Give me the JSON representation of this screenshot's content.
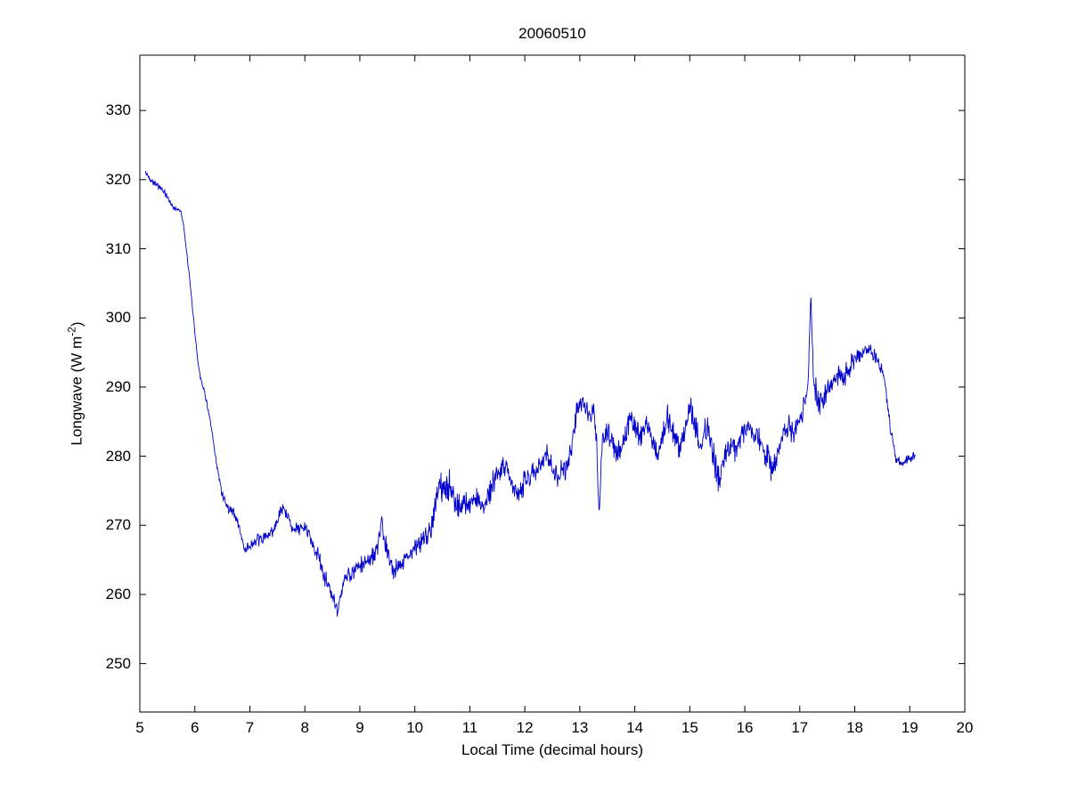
{
  "title": "20060510",
  "chart_data": {
    "type": "line",
    "title": "20060510",
    "xlabel": "Local Time (decimal hours)",
    "ylabel": "Longwave (W m-2)",
    "ylabel_parts": {
      "pre": "Longwave (W m",
      "sup": "-2",
      "post": ")"
    },
    "xlim": [
      5,
      20
    ],
    "ylim": [
      243,
      338
    ],
    "xticks": [
      5,
      6,
      7,
      8,
      9,
      10,
      11,
      12,
      13,
      14,
      15,
      16,
      17,
      18,
      19,
      20
    ],
    "yticks": [
      250,
      260,
      270,
      280,
      290,
      300,
      310,
      320,
      330
    ],
    "grid": false,
    "legend": "none",
    "line_color": "#0000cc",
    "axis_color": "#000000",
    "series": [
      {
        "name": "longwave",
        "x_start": 5.1,
        "x_end": 19.1,
        "sample_step": 0.008,
        "noise_seed": 42,
        "anchors": [
          [
            5.1,
            321,
            0.6
          ],
          [
            5.2,
            320,
            0.6
          ],
          [
            5.35,
            319,
            0.6
          ],
          [
            5.5,
            317.5,
            0.6
          ],
          [
            5.6,
            316,
            0.4
          ],
          [
            5.75,
            315.5,
            0.4
          ],
          [
            5.8,
            313,
            0.3
          ],
          [
            5.9,
            306,
            0.3
          ],
          [
            6.0,
            298,
            0.3
          ],
          [
            6.05,
            294,
            0.3
          ],
          [
            6.1,
            291.5,
            0.4
          ],
          [
            6.2,
            288.5,
            0.5
          ],
          [
            6.3,
            284,
            0.5
          ],
          [
            6.4,
            278.5,
            0.6
          ],
          [
            6.5,
            274.5,
            0.8
          ],
          [
            6.6,
            272.5,
            0.8
          ],
          [
            6.7,
            272,
            0.8
          ],
          [
            6.8,
            270,
            1.0
          ],
          [
            6.9,
            266.5,
            1.0
          ],
          [
            7.0,
            267,
            1.1
          ],
          [
            7.1,
            267.5,
            1.1
          ],
          [
            7.2,
            268,
            1.2
          ],
          [
            7.35,
            268.5,
            1.2
          ],
          [
            7.5,
            270.5,
            1.2
          ],
          [
            7.6,
            272.5,
            1.3
          ],
          [
            7.7,
            271,
            1.2
          ],
          [
            7.8,
            269.5,
            1.2
          ],
          [
            7.95,
            269.5,
            1.2
          ],
          [
            8.05,
            269.5,
            1.3
          ],
          [
            8.15,
            267,
            1.3
          ],
          [
            8.25,
            265.5,
            1.4
          ],
          [
            8.35,
            262.5,
            1.5
          ],
          [
            8.45,
            261,
            1.5
          ],
          [
            8.55,
            258.5,
            1.5
          ],
          [
            8.6,
            257,
            1.3
          ],
          [
            8.65,
            260.5,
            1.4
          ],
          [
            8.75,
            262.5,
            1.5
          ],
          [
            8.85,
            263,
            1.5
          ],
          [
            9.0,
            264,
            1.5
          ],
          [
            9.15,
            265,
            1.5
          ],
          [
            9.3,
            266,
            1.6
          ],
          [
            9.4,
            270,
            1.8
          ],
          [
            9.5,
            266,
            1.6
          ],
          [
            9.6,
            263.5,
            1.5
          ],
          [
            9.75,
            264.5,
            1.5
          ],
          [
            9.9,
            266,
            1.5
          ],
          [
            10.0,
            266.5,
            1.6
          ],
          [
            10.15,
            268,
            1.8
          ],
          [
            10.3,
            270,
            2.2
          ],
          [
            10.45,
            276,
            2.8
          ],
          [
            10.55,
            274.5,
            2.5
          ],
          [
            10.65,
            276,
            2.6
          ],
          [
            10.75,
            272.5,
            2.2
          ],
          [
            10.9,
            273.5,
            2.2
          ],
          [
            11.0,
            273,
            2.0
          ],
          [
            11.1,
            274,
            2.2
          ],
          [
            11.2,
            272.5,
            2.0
          ],
          [
            11.35,
            274.5,
            2.2
          ],
          [
            11.5,
            277.5,
            2.2
          ],
          [
            11.6,
            279,
            2.2
          ],
          [
            11.7,
            277.5,
            2.2
          ],
          [
            11.8,
            275,
            2.0
          ],
          [
            11.9,
            274.5,
            2.0
          ],
          [
            12.0,
            276.5,
            2.0
          ],
          [
            12.15,
            277.5,
            2.0
          ],
          [
            12.3,
            279.5,
            2.0
          ],
          [
            12.4,
            280,
            2.0
          ],
          [
            12.5,
            278.5,
            2.0
          ],
          [
            12.6,
            277,
            2.0
          ],
          [
            12.75,
            278.5,
            2.0
          ],
          [
            12.85,
            281,
            2.0
          ],
          [
            12.95,
            287,
            1.8
          ],
          [
            13.05,
            287.5,
            1.8
          ],
          [
            13.15,
            286.5,
            2.0
          ],
          [
            13.25,
            287,
            2.2
          ],
          [
            13.3,
            283,
            2.2
          ],
          [
            13.35,
            271,
            1.5
          ],
          [
            13.4,
            282,
            2.2
          ],
          [
            13.5,
            283,
            2.4
          ],
          [
            13.6,
            281.5,
            2.4
          ],
          [
            13.7,
            280,
            2.4
          ],
          [
            13.8,
            282.5,
            2.4
          ],
          [
            13.9,
            285.5,
            2.2
          ],
          [
            14.0,
            284,
            2.4
          ],
          [
            14.1,
            283,
            2.4
          ],
          [
            14.2,
            285.5,
            2.4
          ],
          [
            14.3,
            282.5,
            2.4
          ],
          [
            14.4,
            280,
            2.4
          ],
          [
            14.5,
            283,
            2.4
          ],
          [
            14.6,
            285.5,
            2.4
          ],
          [
            14.7,
            283.5,
            2.4
          ],
          [
            14.8,
            281,
            2.4
          ],
          [
            14.9,
            283,
            2.4
          ],
          [
            15.0,
            287.5,
            2.0
          ],
          [
            15.1,
            284.5,
            2.4
          ],
          [
            15.2,
            281,
            2.4
          ],
          [
            15.3,
            284.5,
            2.4
          ],
          [
            15.4,
            282,
            2.6
          ],
          [
            15.5,
            276.5,
            2.6
          ],
          [
            15.6,
            278.5,
            2.6
          ],
          [
            15.7,
            281,
            2.4
          ],
          [
            15.85,
            281.5,
            2.4
          ],
          [
            16.0,
            284,
            2.2
          ],
          [
            16.1,
            283.5,
            2.2
          ],
          [
            16.25,
            282.5,
            2.2
          ],
          [
            16.4,
            280,
            2.4
          ],
          [
            16.5,
            277.5,
            2.6
          ],
          [
            16.6,
            280.5,
            2.4
          ],
          [
            16.7,
            283,
            2.2
          ],
          [
            16.8,
            284.5,
            2.2
          ],
          [
            16.9,
            283,
            2.4
          ],
          [
            17.0,
            285.5,
            2.4
          ],
          [
            17.1,
            288.5,
            2.4
          ],
          [
            17.15,
            290,
            2.0
          ],
          [
            17.2,
            303.5,
            1.0
          ],
          [
            17.25,
            291,
            2.0
          ],
          [
            17.35,
            287.5,
            2.4
          ],
          [
            17.45,
            288.5,
            2.4
          ],
          [
            17.55,
            290,
            2.4
          ],
          [
            17.65,
            291.5,
            2.4
          ],
          [
            17.75,
            292,
            2.4
          ],
          [
            17.85,
            291.5,
            2.4
          ],
          [
            17.95,
            293.5,
            2.0
          ],
          [
            18.05,
            294.5,
            1.6
          ],
          [
            18.15,
            295,
            1.4
          ],
          [
            18.25,
            295.5,
            1.2
          ],
          [
            18.35,
            294.5,
            1.2
          ],
          [
            18.45,
            293.5,
            1.2
          ],
          [
            18.55,
            290.5,
            1.0
          ],
          [
            18.65,
            284,
            1.0
          ],
          [
            18.75,
            279.5,
            0.8
          ],
          [
            18.85,
            279,
            0.8
          ],
          [
            18.95,
            279.5,
            0.8
          ],
          [
            19.05,
            280,
            0.8
          ],
          [
            19.1,
            280,
            0.6
          ]
        ]
      }
    ]
  }
}
